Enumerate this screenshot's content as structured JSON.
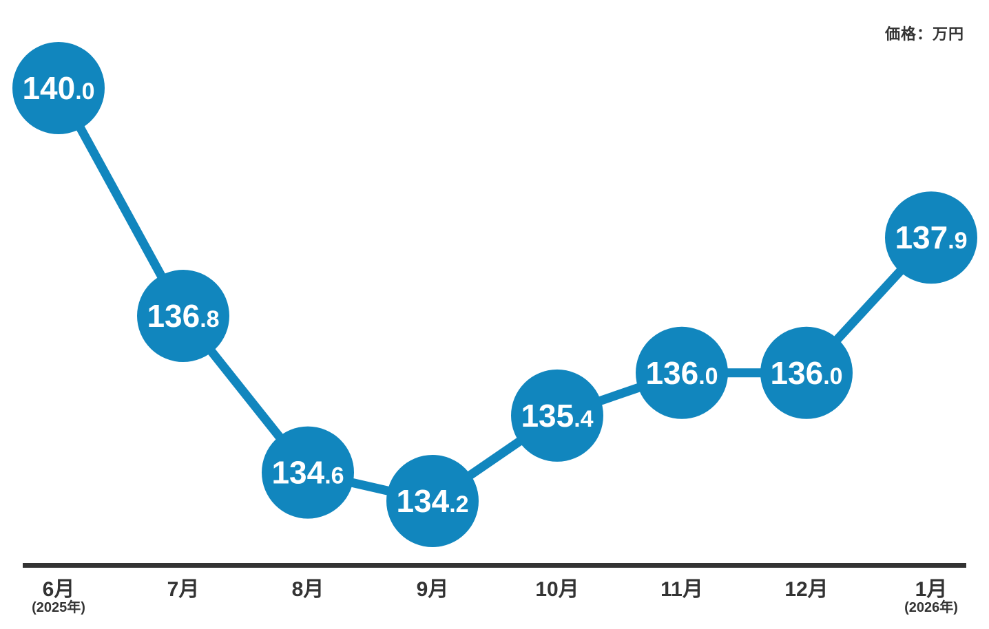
{
  "unit_label": "価格：万円",
  "chart_data": {
    "type": "line",
    "title": "",
    "unit_label": "価格：万円",
    "categories": [
      "6月",
      "7月",
      "8月",
      "9月",
      "10月",
      "11月",
      "12月",
      "1月"
    ],
    "category_sublabels": [
      "(2025年)",
      "",
      "",
      "",
      "",
      "",
      "",
      "(2026年)"
    ],
    "values": [
      140.0,
      136.8,
      134.6,
      134.2,
      135.4,
      136.0,
      136.0,
      137.9
    ],
    "ylim": [
      134.2,
      140.0
    ],
    "grid": false,
    "legend_position": "top-right",
    "colors": {
      "line": "#1186BE",
      "marker": "#1186BE",
      "marker_text": "#FFFFFF",
      "axis": "#333333"
    }
  }
}
